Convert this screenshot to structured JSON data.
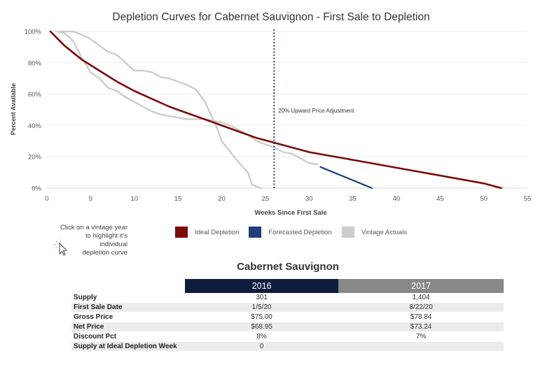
{
  "chart_data": {
    "type": "line",
    "title": "Depletion Curves for Cabernet Sauvignon - First Sale to Depletion",
    "xlabel": "Weeks Since First Sale",
    "ylabel": "Percent Available",
    "xlim": [
      0,
      55
    ],
    "ylim": [
      0,
      100
    ],
    "x_ticks": [
      0,
      5,
      10,
      15,
      20,
      25,
      30,
      35,
      40,
      45,
      50,
      55
    ],
    "y_ticks": [
      0,
      20,
      40,
      60,
      80,
      100
    ],
    "x_tick_labels": [
      "0",
      "5",
      "10",
      "15",
      "20",
      "25",
      "30",
      "35",
      "40",
      "45",
      "50",
      "55"
    ],
    "y_tick_labels": [
      "0%",
      "20%",
      "40%",
      "60%",
      "80%",
      "100%"
    ],
    "grid": "horizontal",
    "reference_line": {
      "x": 26,
      "label": "20% Upward Price Adjustment"
    },
    "legend_position": "bottom",
    "legend": [
      {
        "label": "Ideal Depletion",
        "color": "#7b0b0b"
      },
      {
        "label": "Forecasted Depletion",
        "color": "#1f3f7a"
      },
      {
        "label": "Vintage Actuals",
        "color": "#cccccc"
      }
    ],
    "series": [
      {
        "name": "Ideal Depletion",
        "color": "#7b0b0b",
        "x": [
          0.4,
          2,
          4,
          6,
          8,
          10,
          12,
          14,
          16,
          18,
          20,
          22,
          24,
          26,
          28,
          30,
          32,
          34,
          36,
          38,
          40,
          42,
          44,
          46,
          48,
          50,
          52
        ],
        "y": [
          100,
          91,
          82,
          75,
          68,
          62,
          57,
          52,
          48,
          44,
          40,
          36,
          32,
          29,
          26,
          23,
          21,
          19,
          17,
          15,
          13,
          11,
          9,
          7,
          5,
          3,
          0
        ]
      },
      {
        "name": "Forecasted Depletion",
        "color": "#1f3f7a",
        "x": [
          31.3,
          37.2
        ],
        "y": [
          13.5,
          0
        ]
      },
      {
        "name": "Vintage Actuals 2016",
        "color": "#cccccc",
        "x": [
          1,
          2,
          3,
          4,
          5,
          6,
          7,
          8,
          9,
          10,
          11,
          12,
          13,
          14,
          15,
          16,
          17,
          18,
          19,
          20,
          21,
          22,
          23,
          24,
          25,
          26,
          27,
          28,
          29,
          30,
          31
        ],
        "y": [
          100,
          99,
          94,
          83,
          74,
          70,
          64,
          62,
          58,
          55,
          52,
          49,
          47,
          46,
          45,
          44,
          44,
          44,
          43,
          42,
          40,
          37,
          34,
          30,
          28,
          26,
          23,
          22,
          19,
          16,
          15
        ]
      },
      {
        "name": "Vintage Actuals 2017",
        "color": "#cccccc",
        "x": [
          1.5,
          3,
          4,
          5,
          6,
          7,
          8,
          9,
          10,
          11,
          12,
          13,
          14,
          15,
          16,
          17,
          18,
          19,
          19.5,
          20,
          21,
          22,
          23,
          23.5,
          24.5
        ],
        "y": [
          100,
          100,
          98,
          95,
          91,
          87,
          85,
          80,
          75,
          75,
          74,
          71,
          70,
          68,
          66,
          63,
          56,
          44,
          38,
          30,
          23,
          16,
          10,
          2,
          0
        ]
      }
    ]
  },
  "legend": {
    "ideal": "Ideal Depletion",
    "forecast": "Forecasted Depletion",
    "actuals": "Vintage Actuals"
  },
  "colors": {
    "ideal": "#7b0b0b",
    "forecast": "#1f3f7a",
    "actuals": "#cccccc"
  },
  "hint": {
    "line1": "Click on a vintage year",
    "line2": "to highlight it's",
    "line3": "individual",
    "line4": "depletion curve"
  },
  "table": {
    "title": "Cabernet Sauvignon",
    "columns": [
      "2016",
      "2017"
    ],
    "rows": [
      {
        "label": "Supply",
        "values": [
          "301",
          "1,404"
        ]
      },
      {
        "label": "First Sale Date",
        "values": [
          "1/5/20",
          "8/22/20"
        ]
      },
      {
        "label": "Gross Price",
        "values": [
          "$75.00",
          "$78.84"
        ]
      },
      {
        "label": "Net Price",
        "values": [
          "$68.95",
          "$73.24"
        ]
      },
      {
        "label": "Discount Pct",
        "values": [
          "8%",
          "7%"
        ]
      },
      {
        "label": "Supply at Ideal Depletion Week",
        "values": [
          "0",
          ""
        ]
      }
    ]
  }
}
